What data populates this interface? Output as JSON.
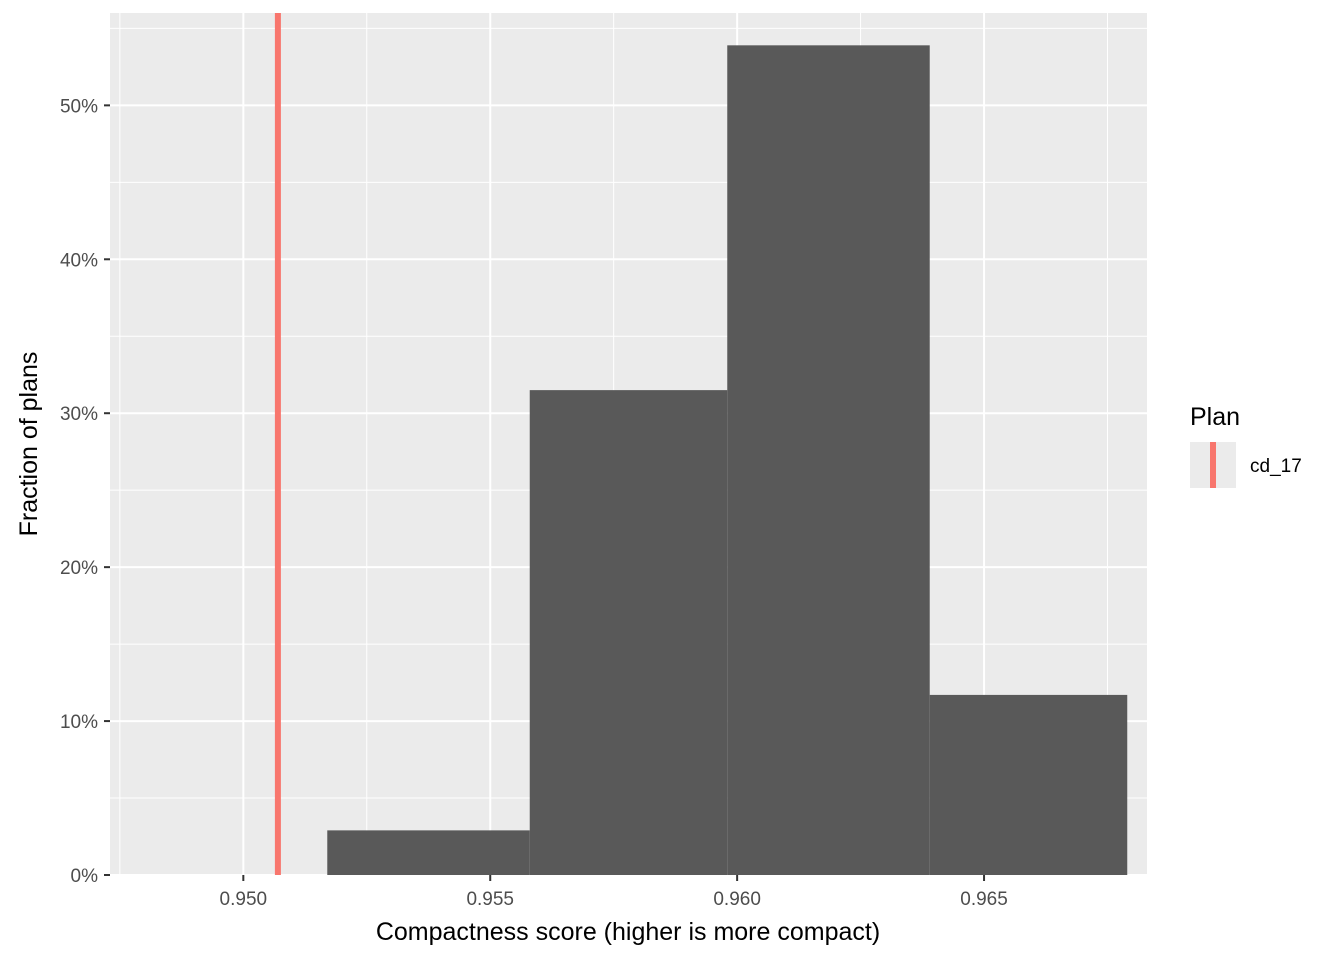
{
  "chart_data": {
    "type": "bar",
    "subtype": "histogram",
    "title": "",
    "xlabel": "Compactness score (higher is more compact)",
    "ylabel": "Fraction of plans",
    "xlim": [
      0.9473,
      0.9683
    ],
    "ylim": [
      0,
      0.56
    ],
    "x_ticks": [
      {
        "value": 0.95,
        "label": "0.950"
      },
      {
        "value": 0.955,
        "label": "0.955"
      },
      {
        "value": 0.96,
        "label": "0.960"
      },
      {
        "value": 0.965,
        "label": "0.965"
      }
    ],
    "y_ticks": [
      {
        "value": 0.0,
        "label": "0%"
      },
      {
        "value": 0.1,
        "label": "10%"
      },
      {
        "value": 0.2,
        "label": "20%"
      },
      {
        "value": 0.3,
        "label": "30%"
      },
      {
        "value": 0.4,
        "label": "40%"
      },
      {
        "value": 0.5,
        "label": "50%"
      }
    ],
    "grid": true,
    "bar_color": "#595959",
    "panel_background": "#ebebeb",
    "grid_color": "#ffffff",
    "bins": [
      {
        "x0": 0.9517,
        "x1": 0.9558,
        "value": 0.029
      },
      {
        "x0": 0.9558,
        "x1": 0.9598,
        "value": 0.315
      },
      {
        "x0": 0.9598,
        "x1": 0.9639,
        "value": 0.539
      },
      {
        "x0": 0.9639,
        "x1": 0.9679,
        "value": 0.117
      }
    ],
    "reference_lines": [
      {
        "name": "cd_17",
        "x": 0.9507,
        "color": "#f8766d"
      }
    ],
    "legend": {
      "title": "Plan",
      "position": "right",
      "entries": [
        {
          "label": "cd_17",
          "color": "#f8766d"
        }
      ]
    }
  }
}
